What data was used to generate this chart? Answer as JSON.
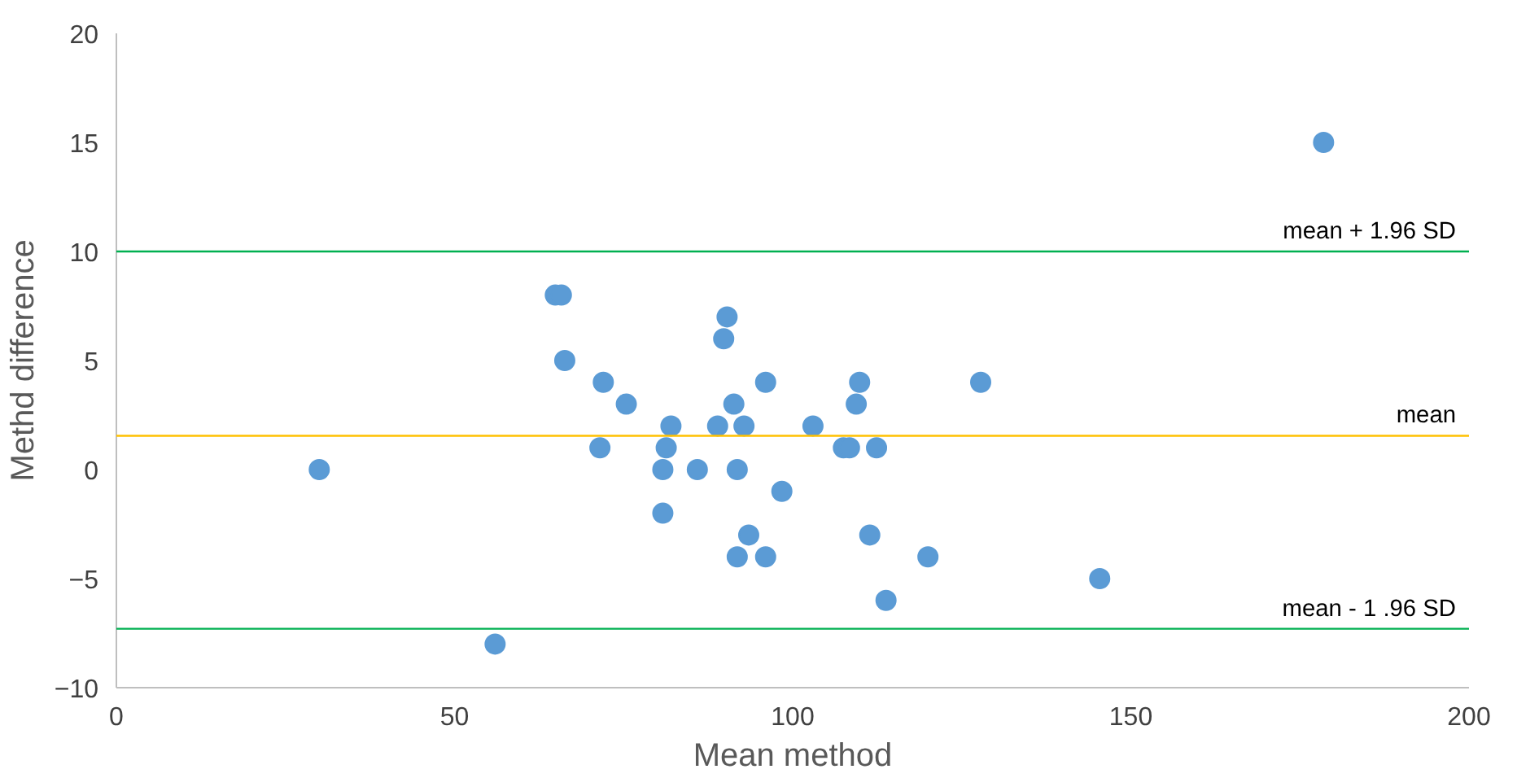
{
  "chart_data": {
    "type": "scatter",
    "xlabel": "Mean method",
    "ylabel": "Methd difference",
    "x": [
      30,
      56,
      178.5,
      64.9,
      65.8,
      66.3,
      72,
      71.5,
      75.4,
      80.8,
      80.8,
      82,
      81.3,
      85.9,
      88.9,
      89.8,
      90.3,
      91.3,
      91.8,
      91.8,
      92.8,
      93.5,
      96,
      96,
      98.4,
      103,
      107.5,
      108.4,
      109.4,
      109.9,
      111.4,
      112.4,
      113.8,
      120,
      127.8,
      145.4
    ],
    "series": [
      {
        "color": "#5b9bd5",
        "values": [
          0,
          -8,
          15,
          8,
          8,
          5,
          4,
          1,
          3,
          0,
          -2,
          2,
          1,
          0,
          2,
          6,
          7,
          3,
          0,
          -4,
          2,
          -3,
          4,
          -4,
          -1,
          2,
          1,
          1,
          3,
          4,
          -3,
          1,
          -6,
          -4,
          4,
          -5
        ]
      }
    ],
    "xlim": [
      0,
      200
    ],
    "ylim": [
      -10,
      20
    ],
    "xticks": [
      0,
      50,
      100,
      150,
      200
    ],
    "yticks": [
      -10,
      -5,
      0,
      5,
      10,
      15,
      20
    ],
    "grid": false,
    "marker": "circle",
    "ref_lines": [
      {
        "axis": "y",
        "value": 10,
        "label": "mean + 1.96 SD",
        "color": "#00b050"
      },
      {
        "axis": "y",
        "value": 1.55,
        "label": "mean",
        "color": "#ffc000"
      },
      {
        "axis": "y",
        "value": -7.3,
        "label": "mean - 1 .96 SD",
        "color": "#00b050"
      }
    ]
  }
}
